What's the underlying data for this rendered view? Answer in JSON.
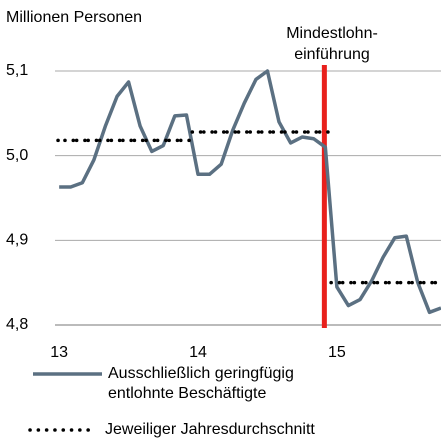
{
  "chart_data": {
    "type": "line",
    "title": "Millionen Personen",
    "x": [
      13,
      13.083,
      13.167,
      13.25,
      13.333,
      13.417,
      13.5,
      13.583,
      13.667,
      13.75,
      13.833,
      13.917,
      14,
      14.083,
      14.167,
      14.25,
      14.333,
      14.417,
      14.5,
      14.583,
      14.667,
      14.75,
      14.833,
      14.917,
      15,
      15.083,
      15.167,
      15.25,
      15.333,
      15.417,
      15.5,
      15.583,
      15.667,
      15.75
    ],
    "series": [
      {
        "name": "Ausschließlich geringfügig entlohnte Beschäftigte",
        "color": "#5b7082",
        "style": "solid",
        "values": [
          4.963,
          4.963,
          4.968,
          4.995,
          5.035,
          5.07,
          5.087,
          5.035,
          5.005,
          5.012,
          5.047,
          5.048,
          4.978,
          4.978,
          4.99,
          5.03,
          5.062,
          5.09,
          5.1,
          5.04,
          5.015,
          5.022,
          5.02,
          5.01,
          4.845,
          4.823,
          4.83,
          4.852,
          4.88,
          4.903,
          4.905,
          4.85,
          4.815,
          4.82
        ]
      },
      {
        "name": "Jeweiliger Jahresdurchschnitt",
        "color": "#000000",
        "style": "dotted",
        "values": [
          5.018,
          5.018,
          5.018,
          5.018,
          5.018,
          5.018,
          5.018,
          5.018,
          5.018,
          5.018,
          5.018,
          5.018,
          5.028,
          5.028,
          5.028,
          5.028,
          5.028,
          5.028,
          5.028,
          5.028,
          5.028,
          5.028,
          5.028,
          5.028,
          4.85,
          4.85,
          4.85,
          4.85,
          4.85,
          4.85,
          4.85,
          4.85,
          4.85,
          4.85
        ]
      }
    ],
    "xlim": [
      12.97,
      15.75
    ],
    "xticks": [
      13,
      14,
      15
    ],
    "ylim": [
      4.8,
      5.1
    ],
    "yticks": [
      {
        "value": 4.8,
        "label": "4,8"
      },
      {
        "value": 4.9,
        "label": "4,9"
      },
      {
        "value": 5.0,
        "label": "5,0"
      },
      {
        "value": 5.1,
        "label": "5,1"
      }
    ],
    "grid": true,
    "annotation": {
      "lines": [
        "Mindestlohn-",
        "einführung"
      ],
      "x": 14.91,
      "color": "#e8201c"
    }
  }
}
